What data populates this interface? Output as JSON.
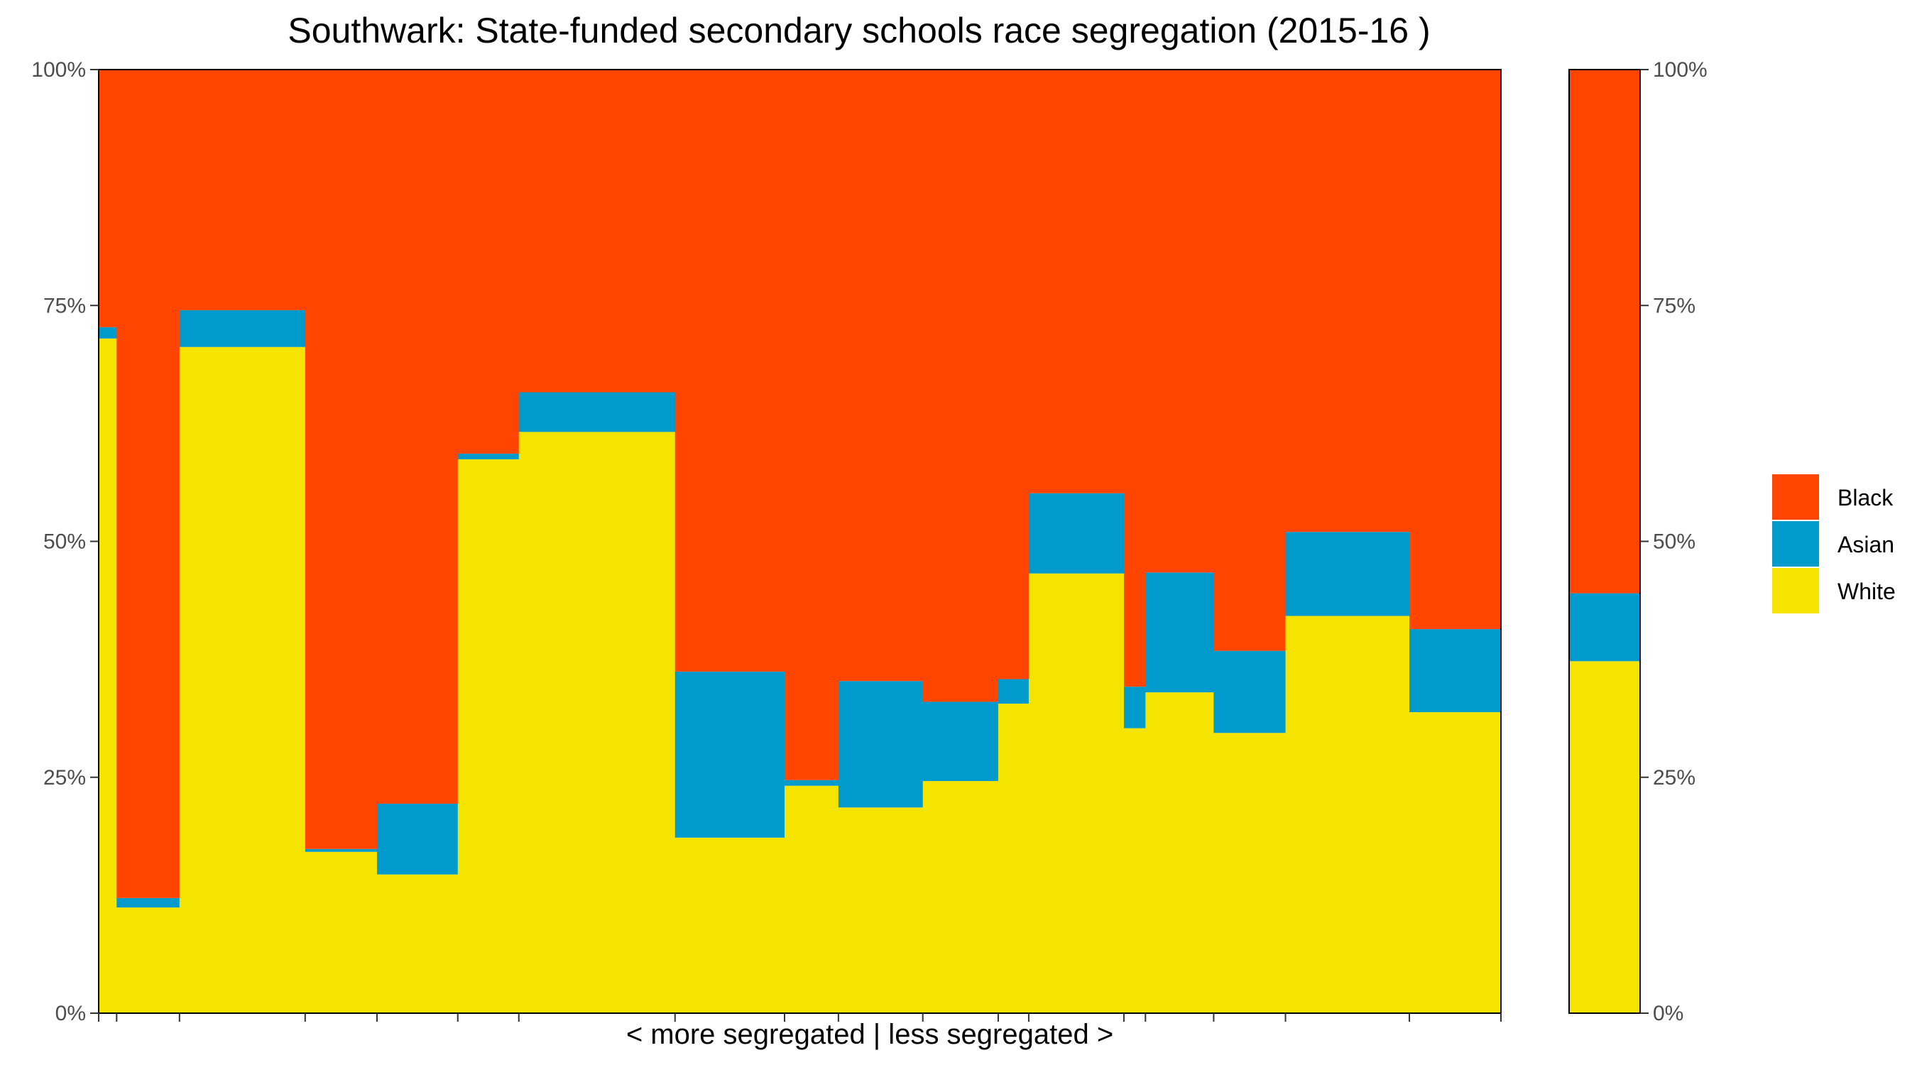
{
  "chart_data": {
    "type": "bar",
    "title": "Southwark: State-funded secondary schools race segregation (2015-16 )",
    "xlabel": "< more segregated | less segregated >",
    "ylabel": "",
    "ylim": [
      0,
      100
    ],
    "y_ticks": [
      "0%",
      "25%",
      "50%",
      "75%",
      "100%"
    ],
    "legend": {
      "position": "right",
      "entries": [
        "Black",
        "Asian",
        "White"
      ]
    },
    "colors": {
      "Black": "#FF4500",
      "Asian": "#009ACD",
      "White": "#F5E400"
    },
    "stack_order": [
      "White",
      "Asian",
      "Black"
    ],
    "bar_widths_relative": [
      1.0,
      3.5,
      7.0,
      4.0,
      4.5,
      3.4,
      8.7,
      6.1,
      3.0,
      4.7,
      4.2,
      1.7,
      5.3,
      1.2,
      3.8,
      4.0,
      6.9,
      5.1
    ],
    "series": [
      {
        "name": "White",
        "values": [
          71.5,
          11.2,
          70.6,
          17.1,
          14.7,
          58.7,
          61.6,
          18.6,
          24.1,
          21.8,
          24.6,
          32.8,
          46.6,
          30.2,
          34.0,
          29.7,
          42.1,
          31.9
        ]
      },
      {
        "name": "Asian",
        "values": [
          1.2,
          1.0,
          3.9,
          0.3,
          7.5,
          0.6,
          4.2,
          17.6,
          0.6,
          13.4,
          8.4,
          2.6,
          8.5,
          4.4,
          12.7,
          8.7,
          8.9,
          8.8
        ]
      },
      {
        "name": "Black",
        "values": [
          27.3,
          87.8,
          25.5,
          82.6,
          77.8,
          40.7,
          34.2,
          63.8,
          75.3,
          64.8,
          67.0,
          64.6,
          44.9,
          65.4,
          53.3,
          61.6,
          49.0,
          59.3
        ]
      }
    ],
    "summary_bar": {
      "White": 37.3,
      "Asian": 7.2,
      "Black": 55.5
    },
    "grid": false
  }
}
